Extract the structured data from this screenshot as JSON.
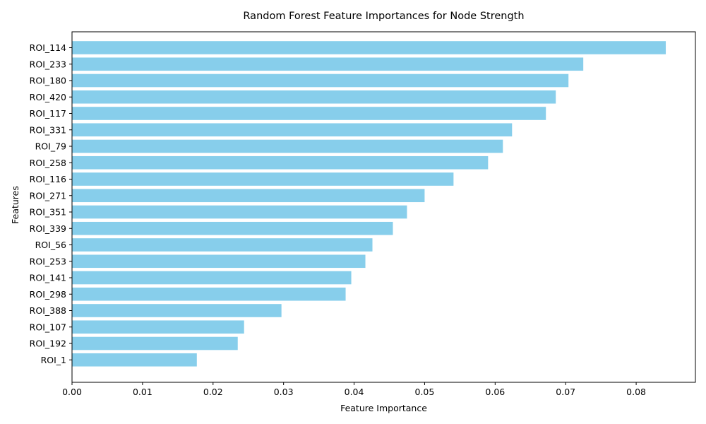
{
  "chart_data": {
    "type": "bar",
    "orientation": "horizontal",
    "title": "Random Forest Feature Importances for Node Strength",
    "xlabel": "Feature Importance",
    "ylabel": "Features",
    "xlim": [
      0.0,
      0.0884
    ],
    "xticks": [
      "0.00",
      "0.01",
      "0.02",
      "0.03",
      "0.04",
      "0.05",
      "0.06",
      "0.07",
      "0.08"
    ],
    "grid": false,
    "bar_color": "#87CEEB",
    "categories": [
      "ROI_114",
      "ROI_233",
      "ROI_180",
      "ROI_420",
      "ROI_117",
      "ROI_331",
      "ROI_79",
      "ROI_258",
      "ROI_116",
      "ROI_271",
      "ROI_351",
      "ROI_339",
      "ROI_56",
      "ROI_253",
      "ROI_141",
      "ROI_298",
      "ROI_388",
      "ROI_107",
      "ROI_192",
      "ROI_1"
    ],
    "values": [
      0.0842,
      0.0725,
      0.0704,
      0.0686,
      0.0672,
      0.0624,
      0.0611,
      0.059,
      0.0541,
      0.05,
      0.0475,
      0.0455,
      0.0426,
      0.0416,
      0.0396,
      0.0388,
      0.0297,
      0.0244,
      0.0235,
      0.0177
    ]
  }
}
